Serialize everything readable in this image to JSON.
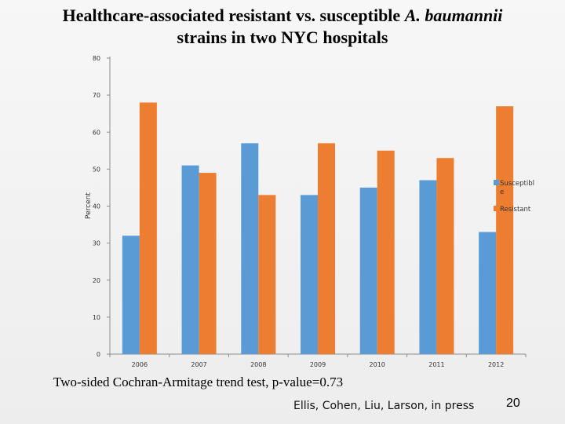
{
  "slide": {
    "title_line1_prefix": "Healthcare-associated resistant vs. susceptible ",
    "title_line1_italic": "A. baumannii",
    "title_line2": "strains in two NYC hospitals",
    "footnote": "Two-sided Cochran-Armitage trend test, p-value=0.73",
    "citation": "Ellis, Cohen, Liu, Larson, in press",
    "page_number": "20"
  },
  "chart_data": {
    "type": "bar",
    "title": "",
    "xlabel": "",
    "ylabel": "Percent",
    "ylim": [
      0,
      80
    ],
    "yticks": [
      0,
      10,
      20,
      30,
      40,
      50,
      60,
      70,
      80
    ],
    "grid": false,
    "legend_position": "right",
    "categories": [
      "2006",
      "2007",
      "2008",
      "2009",
      "2010",
      "2011",
      "2012"
    ],
    "series": [
      {
        "name": "Susceptible",
        "legend_lines": [
          "Susceptibl",
          "e"
        ],
        "color": "#5b9bd5",
        "values": [
          32,
          51,
          57,
          43,
          45,
          47,
          33
        ]
      },
      {
        "name": "Resistant",
        "legend_lines": [
          "Resistant"
        ],
        "color": "#ed7d31",
        "values": [
          68,
          49,
          43,
          57,
          55,
          53,
          67
        ]
      }
    ]
  }
}
